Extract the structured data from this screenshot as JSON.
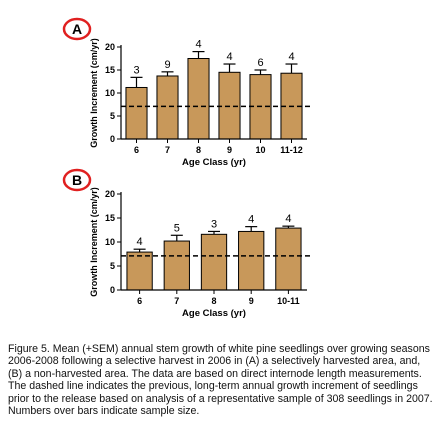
{
  "chart_data": [
    {
      "type": "bar",
      "panel_label": "A",
      "categories": [
        "6",
        "7",
        "8",
        "9",
        "10",
        "11-12"
      ],
      "values": [
        11.2,
        13.7,
        17.5,
        14.5,
        14.0,
        14.3
      ],
      "errors": [
        2.2,
        0.9,
        1.5,
        1.8,
        1.0,
        2.0
      ],
      "sample_sizes": [
        "3",
        "9",
        "4",
        "4",
        "6",
        "4"
      ],
      "reference_line": 7.1,
      "ylim": [
        0,
        20
      ],
      "yticks": [
        "0",
        "5",
        "10",
        "15",
        "20"
      ],
      "xlabel": "Age Class (yr)",
      "ylabel": "Growth Increment (cm/yr)"
    },
    {
      "type": "bar",
      "panel_label": "B",
      "categories": [
        "6",
        "7",
        "8",
        "9",
        "10-11"
      ],
      "values": [
        7.9,
        10.2,
        11.6,
        12.2,
        12.9
      ],
      "errors": [
        0.6,
        1.2,
        0.6,
        1.0,
        0.4
      ],
      "sample_sizes": [
        "4",
        "5",
        "3",
        "4",
        "4"
      ],
      "reference_line": 7.1,
      "ylim": [
        0,
        20
      ],
      "yticks": [
        "0",
        "5",
        "10",
        "15",
        "20"
      ],
      "xlabel": "Age Class (yr)",
      "ylabel": "Growth Increment (cm/yr)"
    }
  ],
  "colors": {
    "bar_fill": "#C8985A",
    "bar_stroke": "#000000",
    "panel_circle": "#E02020"
  },
  "caption": "Figure 5. Mean (+SEM) annual stem growth of white pine seedlings over growing seasons 2006-2008 following a selective harvest in 2006 in (A) a selectively harvested area, and, (B) a non-harvested area. The data are based on direct internode length measurements. The dashed line indicates the previous, long-term annual growth increment of seedlings prior to the release based on analysis of a representative sample of 308 seedlings in 2007. Numbers over bars indicate sample size."
}
